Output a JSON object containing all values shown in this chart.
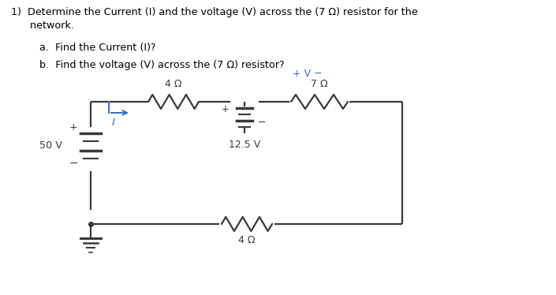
{
  "title_line1": "1)  Determine the Current (I) and the voltage (V) across the (7 Ω) resistor for the",
  "title_line2": "      network.",
  "part_a": "a.  Find the Current (I)?",
  "part_b": "b.  Find the voltage (V) across the (7 Ω) resistor?",
  "bg_color": "#ffffff",
  "text_color": "#000000",
  "circuit_color": "#3a3a3a",
  "arrow_color": "#3a6dbf",
  "label_I_color": "#3a6dbf",
  "voltage_label_color": "#3a6dbf",
  "r1_label": "4 Ω",
  "r2_label": "7 Ω",
  "r3_label": "4 Ω",
  "vs1_label": "50 V",
  "vs2_label": "12.5 V",
  "v_label": "+ V −",
  "I_label": "I"
}
